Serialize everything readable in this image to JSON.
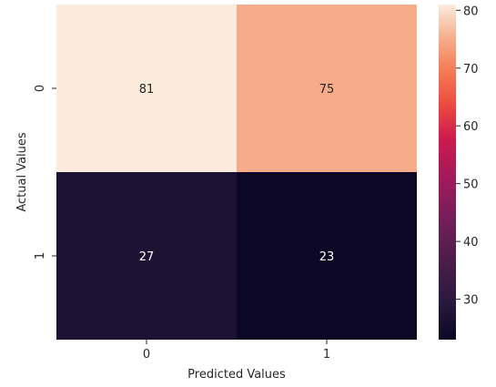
{
  "chart_data": {
    "type": "heatmap",
    "title": "",
    "xlabel": "Predicted Values",
    "ylabel": "Actual Values",
    "x_categories": [
      "0",
      "1"
    ],
    "y_categories": [
      "0",
      "1"
    ],
    "values": [
      [
        81,
        75
      ],
      [
        27,
        23
      ]
    ],
    "cell_labels": [
      [
        "81",
        "75"
      ],
      [
        "27",
        "23"
      ]
    ],
    "colorbar": {
      "range": [
        23,
        81
      ],
      "ticks": [
        30,
        40,
        50,
        60,
        70,
        80
      ],
      "tick_labels": [
        "30",
        "40",
        "50",
        "60",
        "70",
        "80"
      ],
      "colormap": "rocket"
    }
  }
}
